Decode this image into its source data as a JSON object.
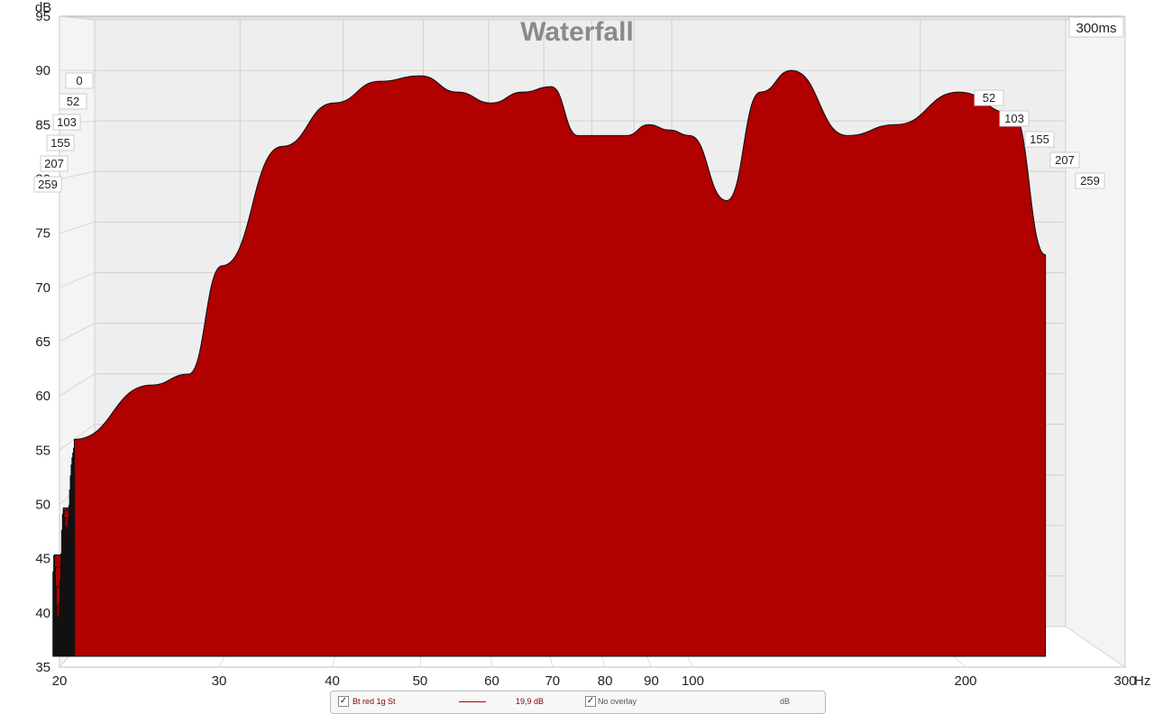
{
  "chart_data": {
    "type": "area",
    "title": "Waterfall",
    "ylabel": "dB",
    "xunit": "Hz",
    "x_scale": "log",
    "xlim": [
      20,
      300
    ],
    "ylim": [
      35,
      95
    ],
    "x_ticks": [
      "20",
      "30",
      "40",
      "50",
      "60",
      "70",
      "80",
      "90",
      "100",
      "200",
      "300"
    ],
    "y_ticks": [
      "95",
      "90",
      "85",
      "80",
      "75",
      "70",
      "65",
      "60",
      "55",
      "50",
      "45",
      "40",
      "35"
    ],
    "time_span_label": "300ms",
    "time_labels_left": [
      "0",
      "52",
      "103",
      "155",
      "207",
      "259"
    ],
    "time_labels_right": [
      "52",
      "103",
      "155",
      "207",
      "259"
    ],
    "fill_color": "#b00000",
    "outline_color": "#111111",
    "series": [
      {
        "x": [
          20.5,
          25,
          27.5,
          30,
          35,
          40,
          45,
          50,
          55,
          60,
          65,
          70,
          75,
          80,
          85,
          90,
          95,
          100,
          110,
          120,
          130,
          150,
          170,
          200,
          230,
          250
        ],
        "values": [
          56,
          61,
          62,
          72,
          83,
          87,
          89,
          89.5,
          88,
          87,
          88,
          88.5,
          84,
          84,
          84,
          85,
          84.5,
          84,
          78,
          88,
          90,
          84,
          85,
          88,
          86,
          73
        ]
      }
    ]
  },
  "legend": {
    "series_name": "Bt red 1g St",
    "series_value": "19,9 dB",
    "overlay_label": "No overlay",
    "overlay_unit": "dB",
    "series_color": "#b00000",
    "series_checked": "✓",
    "overlay_checked": "✓"
  }
}
